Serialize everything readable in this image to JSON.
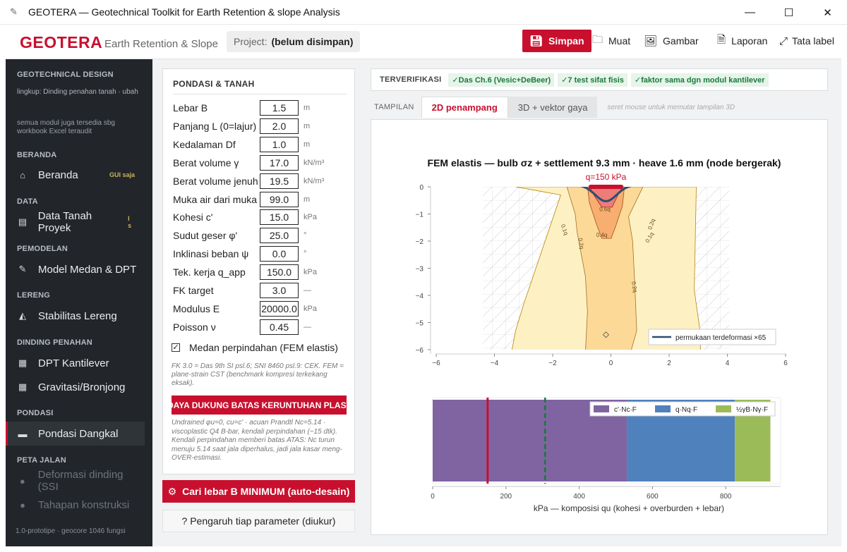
{
  "window": {
    "title": "GEOTERA — Geotechnical Toolkit for Earth Retention & slope Analysis"
  },
  "header": {
    "brand": "GEOTERA",
    "subtitle": "Earth Retention & Slope",
    "project_label": "Project:",
    "project_value": "(belum disimpan)",
    "save": "Simpan",
    "load": "Muat",
    "image": "Gambar",
    "report": "Laporan",
    "layout": "Tata label"
  },
  "sidebar": {
    "section_geo": "GEOTECHNICAL DESIGN",
    "scope": "lingkup: Dinding penahan tanah · ubah",
    "note": "semua modul juga tersedia sbg workbook Excel teraudit",
    "sec_home": "BERANDA",
    "home": "Beranda",
    "home_badge": "GUI saja",
    "sec_data": "DATA",
    "data": "Data Tanah Proyek",
    "data_badge": "I s",
    "sec_model": "PEMODELAN",
    "model": "Model Medan & DPT",
    "sec_slope": "LERENG",
    "slope": "Stabilitas Lereng",
    "sec_wall": "DINDING PENAHAN",
    "cantilever": "DPT Kantilever",
    "gravity": "Gravitasi/Bronjong",
    "sec_found": "PONDASI",
    "shallow": "Pondasi Dangkal",
    "sec_road": "PETA JALAN",
    "deform": "Deformasi dinding (SSI",
    "stages": "Tahapan konstruksi",
    "footer": "1.0-prototipe · geocore 1046 fungsi"
  },
  "form": {
    "title": "PONDASI & TANAH",
    "rows": [
      {
        "label": "Lebar B",
        "value": "1.5",
        "unit": "m"
      },
      {
        "label": "Panjang L (0=lajur)",
        "value": "2.0",
        "unit": "m"
      },
      {
        "label": "Kedalaman Df",
        "value": "1.0",
        "unit": "m"
      },
      {
        "label": "Berat volume γ",
        "value": "17.0",
        "unit": "kN/m³"
      },
      {
        "label": "Berat volume jenuh",
        "value": "19.5",
        "unit": "kN/m³"
      },
      {
        "label": "Muka air dari muka",
        "value": "99.0",
        "unit": "m"
      },
      {
        "label": "Kohesi c'",
        "value": "15.0",
        "unit": "kPa"
      },
      {
        "label": "Sudut geser φ'",
        "value": "25.0",
        "unit": "°"
      },
      {
        "label": "Inklinasi beban ψ",
        "value": "0.0",
        "unit": "°"
      },
      {
        "label": "Tek. kerja q_app",
        "value": "150.0",
        "unit": "kPa"
      },
      {
        "label": "FK target",
        "value": "3.0",
        "unit": "—"
      },
      {
        "label": "Modulus E",
        "value": "20000.0",
        "unit": "kPa"
      },
      {
        "label": "Poisson ν",
        "value": "0.45",
        "unit": "—"
      }
    ],
    "checkbox_label": "Medan perpindahan (FEM elastis)",
    "note1": "FK 3.0 = Das 9th SI psl.6; SNI 8460 psl.9: CEK. FEM = plane-strain CST (benchmark kompresi terkekang eksak).",
    "plastic_button": "DAYA DUKUNG BATAS KERUNTUHAN PLASTIS (FEM Mohr-Coulomb)",
    "note2": "Undrained φu=0, cu=c' · acuan Prandtl Nc=5.14 · viscoplastic Q4 B-bar, kendali perpindahan (~15 dtk). Kendali perpindahan memberi batas ATAS: Nc turun menuju 5.14 saat jala diperhalus, jadi jala kasar meng-OVER-estimasi."
  },
  "actions": {
    "auto": "Cari lebar B MINIMUM (auto-desain)",
    "param": "?  Pengaruh tiap parameter (diukur)"
  },
  "verify": {
    "label": "TERVERIFIKASI",
    "chips": [
      "✓Das Ch.6 (Vesic+DeBeer)",
      "✓7 test sifat fisis",
      "✓faktor sama dgn modul kantilever"
    ]
  },
  "view": {
    "label": "TAMPILAN",
    "tab2d": "2D penampang",
    "tab3d": "3D + vektor gaya",
    "hint": "seret mouse untuk memutar tampilan 3D"
  },
  "chart_data": [
    {
      "type": "contour",
      "title": "FEM elastis — bulb σz + settlement 9.3 mm · heave 1.6 mm  (node bergerak)",
      "load_label": "q=150 kPa",
      "xlim": [
        -6,
        6
      ],
      "ylim": [
        -6,
        0
      ],
      "x_ticks": [
        "−6",
        "−4",
        "−2",
        "0",
        "2",
        "4",
        "6"
      ],
      "y_ticks": [
        "0",
        "−1",
        "−2",
        "−3",
        "−4",
        "−5",
        "−6"
      ],
      "contour_labels": [
        "0.1q",
        "0.2q",
        "0.4q",
        "0.6q",
        "0.1q",
        "0.2q",
        "0.2q"
      ],
      "legend": "permukaan terdeformasi ×65",
      "colors": {
        "outer": "#fdf1c4",
        "mid": "#fbd58e",
        "inner": "#f6a86b",
        "core": "#e8707a",
        "load": "#c8102e",
        "surface": "#2e4d6e"
      }
    },
    {
      "type": "bar",
      "stacked": true,
      "xlabel": "kPa — komposisi qu (kohesi + overburden + lebar)",
      "x_ticks": [
        "0",
        "200",
        "400",
        "600",
        "800"
      ],
      "xlim": [
        0,
        950
      ],
      "series": [
        {
          "name": "c'·Nc·F",
          "value": 530,
          "color": "#8064a2"
        },
        {
          "name": "q·Nq·F",
          "value": 295,
          "color": "#4f81bd"
        },
        {
          "name": "½γB·Nγ·F",
          "value": 97,
          "color": "#9bbb59"
        }
      ],
      "q_app": 150,
      "allowable": 307
    }
  ]
}
